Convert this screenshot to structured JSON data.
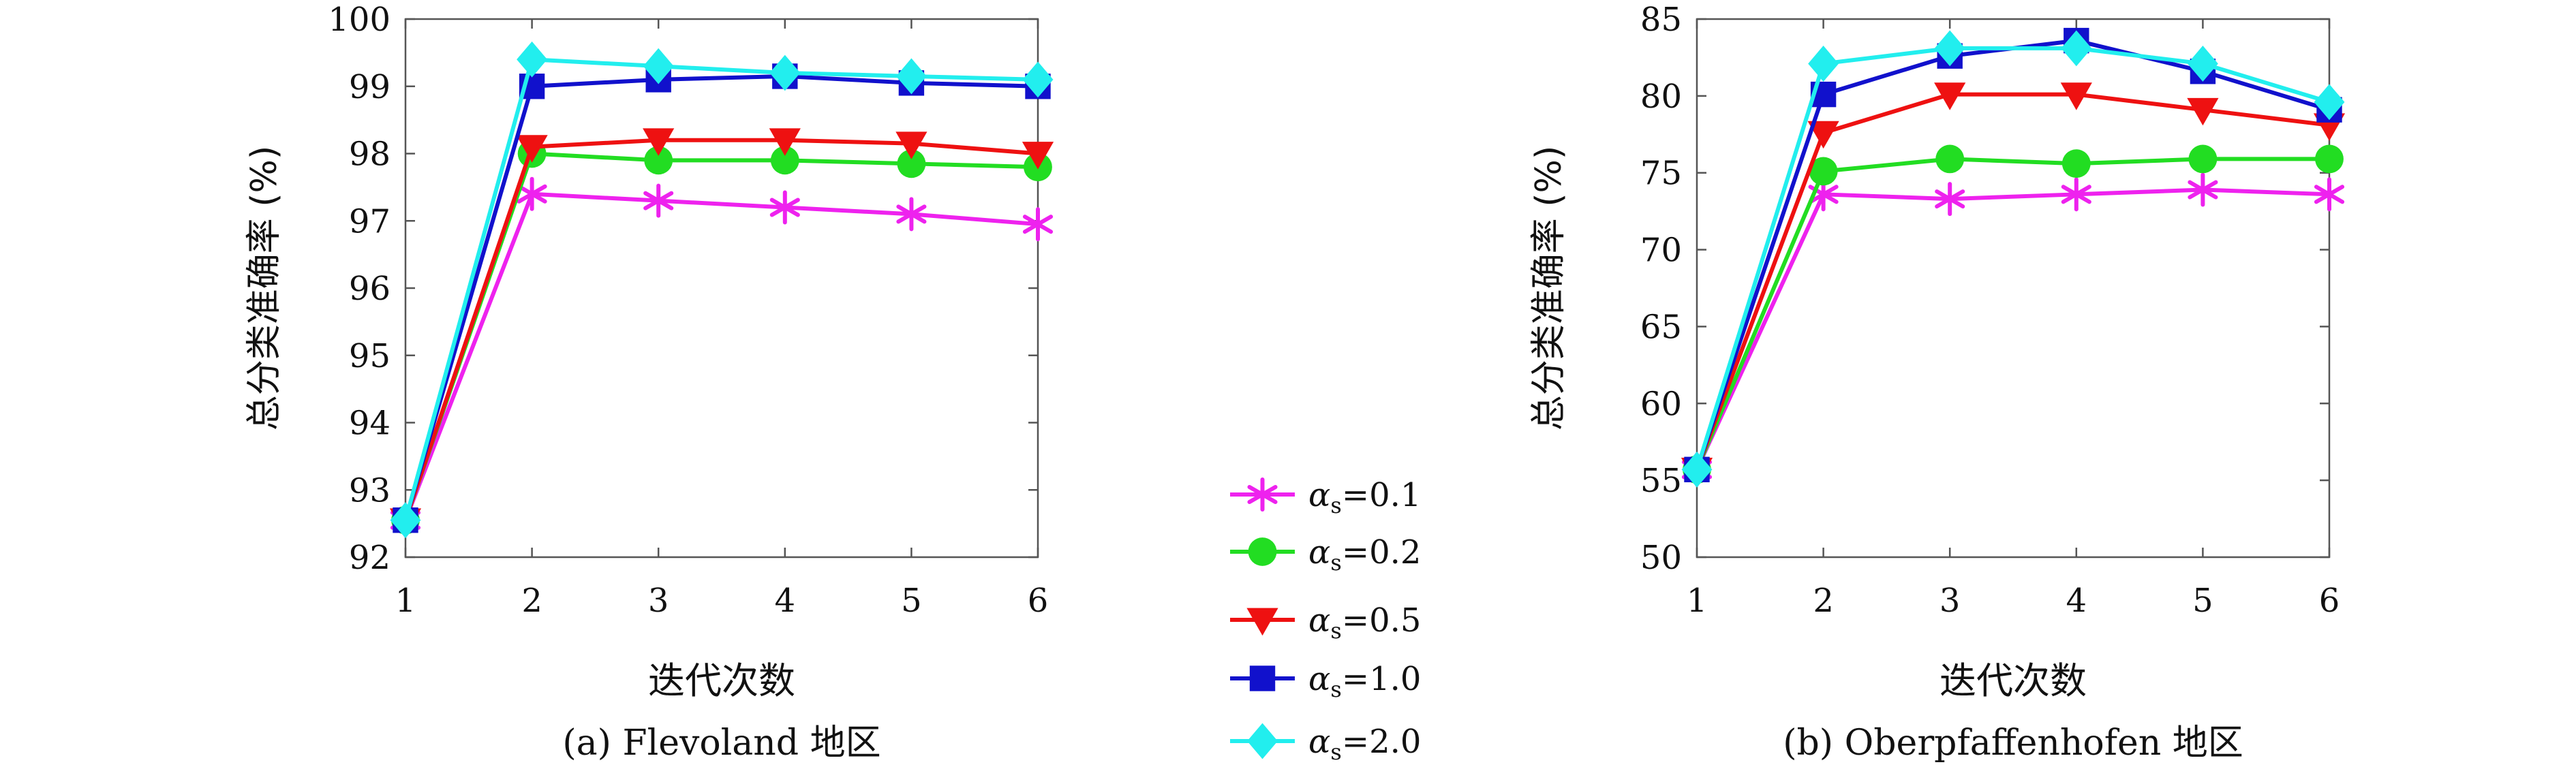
{
  "chart_data": [
    {
      "type": "line",
      "panel": "a",
      "caption": "(a) Flevoland 地区",
      "xlabel": "迭代次数",
      "ylabel": "总分类准确率 (%)",
      "x": [
        1,
        2,
        3,
        4,
        5,
        6
      ],
      "xlim": [
        1,
        6
      ],
      "ylim": [
        92,
        100
      ],
      "yticks": [
        92,
        93,
        94,
        95,
        96,
        97,
        98,
        99,
        100
      ],
      "grid": false,
      "series": [
        {
          "name": "αs=0.1",
          "values": [
            92.55,
            97.4,
            97.3,
            97.2,
            97.1,
            96.95
          ]
        },
        {
          "name": "αs=0.2",
          "values": [
            92.55,
            98.0,
            97.9,
            97.9,
            97.85,
            97.8
          ]
        },
        {
          "name": "αs=0.5",
          "values": [
            92.55,
            98.1,
            98.2,
            98.2,
            98.15,
            98.0
          ]
        },
        {
          "name": "αs=1.0",
          "values": [
            92.55,
            99.0,
            99.1,
            99.15,
            99.05,
            99.0
          ]
        },
        {
          "name": "αs=2.0",
          "values": [
            92.55,
            99.4,
            99.3,
            99.2,
            99.15,
            99.1
          ]
        }
      ]
    },
    {
      "type": "line",
      "panel": "b",
      "caption": "(b) Oberpfaffenhofen 地区",
      "xlabel": "迭代次数",
      "ylabel": "总分类准确率 (%)",
      "x": [
        1,
        2,
        3,
        4,
        5,
        6
      ],
      "xlim": [
        1,
        6
      ],
      "ylim": [
        50,
        85
      ],
      "yticks": [
        50,
        55,
        60,
        65,
        70,
        75,
        80,
        85
      ],
      "grid": false,
      "series": [
        {
          "name": "αs=0.1",
          "values": [
            55.7,
            73.6,
            73.3,
            73.6,
            73.9,
            73.6
          ]
        },
        {
          "name": "αs=0.2",
          "values": [
            55.7,
            75.1,
            75.9,
            75.6,
            75.9,
            75.9
          ]
        },
        {
          "name": "αs=0.5",
          "values": [
            55.7,
            77.6,
            80.1,
            80.1,
            79.1,
            78.1
          ]
        },
        {
          "name": "αs=1.0",
          "values": [
            55.7,
            80.1,
            82.6,
            83.6,
            81.6,
            79.1
          ]
        },
        {
          "name": "αs=2.0",
          "values": [
            55.7,
            82.1,
            83.1,
            83.1,
            82.1,
            79.6
          ]
        }
      ]
    }
  ],
  "legend": {
    "placement": "center-between-panels",
    "entries": [
      {
        "label": "αs=0.1",
        "alpha": "α",
        "sub": "s",
        "value": "=0.1",
        "color": "#ee22ee",
        "marker": "asterisk"
      },
      {
        "label": "αs=0.2",
        "alpha": "α",
        "sub": "s",
        "value": "=0.2",
        "color": "#22dd22",
        "marker": "circle"
      },
      {
        "label": "αs=0.5",
        "alpha": "α",
        "sub": "s",
        "value": "=0.5",
        "color": "#ee1111",
        "marker": "triangle-down"
      },
      {
        "label": "αs=1.0",
        "alpha": "α",
        "sub": "s",
        "value": "=1.0",
        "color": "#1111cc",
        "marker": "square"
      },
      {
        "label": "αs=2.0",
        "alpha": "α",
        "sub": "s",
        "value": "=2.0",
        "color": "#22eeee",
        "marker": "diamond"
      }
    ]
  }
}
